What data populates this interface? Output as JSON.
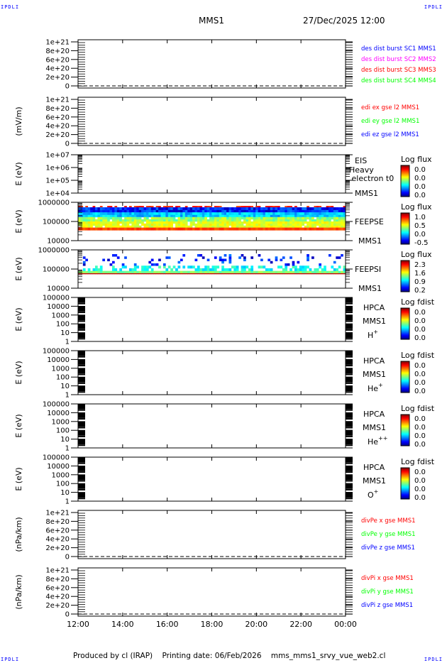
{
  "corner_label": "IPDLI",
  "header": {
    "spacecraft": "MMS1",
    "datetime": "27/Dec/2025 12:00"
  },
  "footer": "Produced by cl (IRAP)    Printing date: 06/Feb/2026    mms_mms1_srvy_vue_web2.cl",
  "colors": {
    "blue": "#0000ff",
    "magenta": "#ff00ff",
    "red": "#ff0000",
    "green": "#00ff00"
  },
  "chart_data": {
    "type": "heatmap",
    "x_ticks": [
      "12:00",
      "14:00",
      "16:00",
      "18:00",
      "20:00",
      "22:00",
      "00:00"
    ],
    "xlim_hours": [
      12,
      24
    ],
    "panels": [
      {
        "kind": "line",
        "ylabel": "",
        "yticks": [
          "1e+21",
          "8e+20",
          "6e+20",
          "4e+20",
          "2e+20",
          "0"
        ],
        "zero_line": true,
        "legend": [
          {
            "text": "des dist burst SC1 MMS1",
            "color": "#0000ff"
          },
          {
            "text": "des dist burst SC2 MMS2",
            "color": "#ff00ff"
          },
          {
            "text": "des dist burst SC3 MMS3",
            "color": "#ff0000"
          },
          {
            "text": "des dist burst SC4 MMS4",
            "color": "#00ff00"
          }
        ]
      },
      {
        "kind": "line",
        "ylabel": "(mV/m)",
        "yticks": [
          "1e+21",
          "8e+20",
          "6e+20",
          "4e+20",
          "2e+20",
          "0"
        ],
        "zero_line": true,
        "legend": [
          {
            "text": "edi ex gse l2 MMS1",
            "color": "#ff0000"
          },
          {
            "text": "edi ey gse l2 MMS1",
            "color": "#00ff00"
          },
          {
            "text": "edi ez gse l2 MMS1",
            "color": "#0000ff"
          }
        ]
      },
      {
        "kind": "spec",
        "ylabel": "E (eV)",
        "yticks": [
          "1e+07",
          "1e+06",
          "1e+05",
          "1e+04"
        ],
        "ylim": [
          10000,
          10000000
        ],
        "labels": [
          "EIS",
          "Heavy electron t0",
          "MMS1"
        ],
        "cbar_title": "Log flux",
        "cbar_ticks": [
          "0.0",
          "0.0",
          "0.0",
          "0.0"
        ],
        "fill": "none"
      },
      {
        "kind": "spec",
        "ylabel": "E (eV)",
        "yticks": [
          "1000000",
          "100000",
          "10000"
        ],
        "ylim": [
          10000,
          1000000
        ],
        "labels": [
          "FEEPSE",
          "MMS1"
        ],
        "cbar_title": "Log flux",
        "cbar_ticks": [
          "1.0",
          "0.5",
          "0.0",
          "-0.5"
        ],
        "fill": "feepse"
      },
      {
        "kind": "spec",
        "ylabel": "E (eV)",
        "yticks": [
          "1000000",
          "100000",
          "10000"
        ],
        "ylim": [
          10000,
          1000000
        ],
        "labels": [
          "FEEPSI",
          "MMS1"
        ],
        "cbar_title": "Log flux",
        "cbar_ticks": [
          "2.3",
          "1.6",
          "0.9",
          "0.2"
        ],
        "fill": "feepsi"
      },
      {
        "kind": "spec",
        "ylabel": "E (eV)",
        "yticks": [
          "100000",
          "10000",
          "1000",
          "100",
          "10",
          "1"
        ],
        "ylim": [
          1,
          100000
        ],
        "labels": [
          "HPCA",
          "MMS1",
          "H+"
        ],
        "cbar_title": "Log fdist",
        "cbar_ticks": [
          "0.0",
          "0.0",
          "0.0",
          "0.0"
        ],
        "fill": "none"
      },
      {
        "kind": "spec",
        "ylabel": "E (eV)",
        "yticks": [
          "100000",
          "10000",
          "1000",
          "100",
          "10",
          "1"
        ],
        "ylim": [
          1,
          100000
        ],
        "labels": [
          "HPCA",
          "MMS1",
          "He+"
        ],
        "cbar_title": "Log fdist",
        "cbar_ticks": [
          "0.0",
          "0.0",
          "0.0",
          "0.0"
        ],
        "fill": "none"
      },
      {
        "kind": "spec",
        "ylabel": "E (eV)",
        "yticks": [
          "100000",
          "10000",
          "1000",
          "100",
          "10",
          "1"
        ],
        "ylim": [
          1,
          100000
        ],
        "labels": [
          "HPCA",
          "MMS1",
          "He++"
        ],
        "cbar_title": "Log fdist",
        "cbar_ticks": [
          "0.0",
          "0.0",
          "0.0",
          "0.0"
        ],
        "fill": "none"
      },
      {
        "kind": "spec",
        "ylabel": "E (eV)",
        "yticks": [
          "100000",
          "10000",
          "1000",
          "100",
          "10",
          "1"
        ],
        "ylim": [
          1,
          100000
        ],
        "labels": [
          "HPCA",
          "MMS1",
          "O+"
        ],
        "cbar_title": "Log fdist",
        "cbar_ticks": [
          "0.0",
          "0.0",
          "0.0",
          "0.0"
        ],
        "fill": "none"
      },
      {
        "kind": "line",
        "ylabel": "(nPa/km)",
        "yticks": [
          "1e+21",
          "8e+20",
          "6e+20",
          "4e+20",
          "2e+20",
          "0"
        ],
        "zero_line": true,
        "legend": [
          {
            "text": "divPe x gse MMS1",
            "color": "#ff0000"
          },
          {
            "text": "divPe y gse MMS1",
            "color": "#00ff00"
          },
          {
            "text": "divPe z gse MMS1",
            "color": "#0000ff"
          }
        ]
      },
      {
        "kind": "line",
        "ylabel": "(nPa/km)",
        "yticks": [
          "1e+21",
          "8e+20",
          "6e+20",
          "4e+20",
          "2e+20",
          "0"
        ],
        "zero_line": true,
        "legend": [
          {
            "text": "divPi x gse MMS1",
            "color": "#ff0000"
          },
          {
            "text": "divPi y gse MMS1",
            "color": "#00ff00"
          },
          {
            "text": "divPi z gse MMS1",
            "color": "#0000ff"
          }
        ]
      }
    ]
  }
}
